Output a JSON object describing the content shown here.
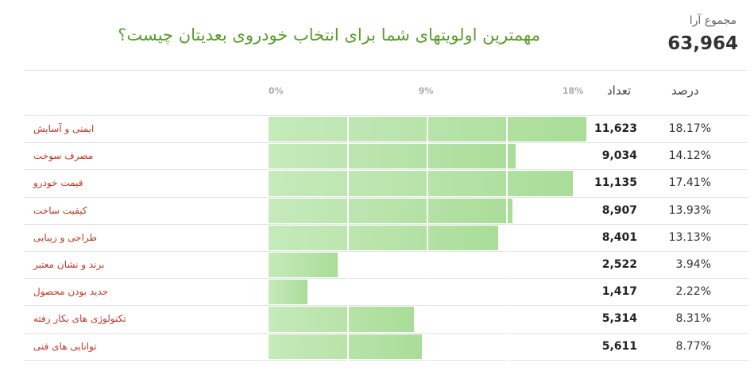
{
  "chart_data": {
    "type": "bar",
    "title": "مهمترین اولویتهای شما برای انتخاب خودروی بعدیتان چیست؟",
    "total_title": "مجموع آرا",
    "total": {
      "value": 63964,
      "label": "63,964"
    },
    "categories": [
      "ایمنی و آسایش",
      "مصرف سوخت",
      "قیمت خودرو",
      "کیفیت ساخت",
      "طراحی و زیبایی",
      "برند و نشان معتبر",
      "جدید بودن محصول",
      "تکنولوژی های بکار رفته",
      "توانایی های فنی"
    ],
    "series": [
      {
        "name": "درصد",
        "color": "#a9dd98",
        "values": [
          18.17,
          14.12,
          17.41,
          13.93,
          13.13,
          3.94,
          2.22,
          8.31,
          8.77
        ],
        "value_labels": [
          "18.17%",
          "14.12%",
          "17.41%",
          "13.93%",
          "13.13%",
          "3.94%",
          "2.22%",
          "8.31%",
          "8.77%"
        ]
      }
    ],
    "counts": {
      "name": "تعداد",
      "values": [
        11623,
        9034,
        11135,
        8907,
        8401,
        2522,
        1417,
        5314,
        5611
      ],
      "value_labels": [
        "11,623",
        "9,034",
        "11,135",
        "8,907",
        "8,401",
        "2,522",
        "1,417",
        "5,314",
        "5,611"
      ]
    },
    "xlim": [
      0,
      18.17
    ],
    "xticks": [
      {
        "value": 0,
        "label": "0%"
      },
      {
        "value": 9,
        "label": "9%"
      },
      {
        "value": 18,
        "label": "18%"
      }
    ]
  }
}
